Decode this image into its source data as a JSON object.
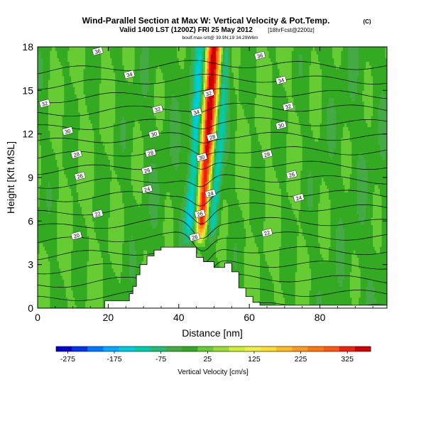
{
  "header": {
    "title": "Wind-Parallel Section at Max W: Vertical Velocity & Pot.Temp.",
    "title_mark": "(C)",
    "subtitle": "Valid 1400 LST (1200Z) FRI 25 May 2012",
    "subtitle_suffix": "[18hrFcst@2200z]",
    "source_line": "boulf.max-srlt@ 39.9N,19 34.29W6m"
  },
  "chart_data": {
    "type": "heatmap",
    "xlabel": "Distance [nm]",
    "ylabel": "Height [Kft MSL]",
    "xlim": [
      0,
      99
    ],
    "ylim": [
      0,
      18
    ],
    "x_ticks": [
      "0",
      "20",
      "40",
      "60",
      "80"
    ],
    "y_ticks": [
      "0",
      "3",
      "6",
      "9",
      "12",
      "15",
      "18"
    ],
    "colorbar": {
      "label": "Vertical Velocity [cm/s]",
      "min": -300,
      "max": 375,
      "ticks": [
        "-275",
        "-175",
        "-75",
        "25",
        "125",
        "225",
        "325"
      ],
      "colors": [
        "#0000cc",
        "#0033ee",
        "#0077ff",
        "#00aaff",
        "#00ccdd",
        "#00ccaa",
        "#22bb77",
        "#44aa44",
        "#33aa22",
        "#66cc33",
        "#99dd33",
        "#ccee33",
        "#eeee44",
        "#ffdd33",
        "#ffbb22",
        "#ff9922",
        "#ff7711",
        "#ff5511",
        "#ee2211",
        "#cc0000"
      ]
    },
    "updraft": {
      "base_x": 46,
      "top_x": 50,
      "core_w": 375,
      "note": "strong updraft column near 46-51 nm rising from ~4 to 18 Kft"
    },
    "terrain": [
      [
        0,
        0
      ],
      [
        19,
        0
      ],
      [
        19,
        0.5
      ],
      [
        26,
        0.5
      ],
      [
        26,
        1
      ],
      [
        27,
        1
      ],
      [
        27,
        1.5
      ],
      [
        28,
        1.5
      ],
      [
        28,
        2.3
      ],
      [
        29,
        2.3
      ],
      [
        29,
        3
      ],
      [
        31,
        3
      ],
      [
        31,
        3.6
      ],
      [
        33,
        3.6
      ],
      [
        33,
        4.0
      ],
      [
        35,
        4.0
      ],
      [
        35,
        4.2
      ],
      [
        45,
        4.2
      ],
      [
        45,
        3.5
      ],
      [
        47,
        3.5
      ],
      [
        47,
        3.2
      ],
      [
        50,
        3.2
      ],
      [
        50,
        2.8
      ],
      [
        53,
        2.8
      ],
      [
        53,
        3.1
      ],
      [
        55,
        3.1
      ],
      [
        55,
        2.5
      ],
      [
        57,
        2.5
      ],
      [
        57,
        1.4
      ],
      [
        59,
        1.4
      ],
      [
        59,
        0.8
      ],
      [
        61,
        0.8
      ],
      [
        61,
        0.4
      ],
      [
        63,
        0.4
      ],
      [
        63,
        0.2
      ],
      [
        99,
        0.2
      ]
    ],
    "isentropes": {
      "levels": [
        20,
        21,
        22,
        23,
        24,
        25,
        26,
        27,
        28,
        29,
        30,
        31,
        32,
        33,
        34,
        35,
        36,
        37
      ],
      "labels": [
        {
          "text": "20",
          "x": 11,
          "y": 5.0
        },
        {
          "text": "22",
          "x": 17,
          "y": 6.5
        },
        {
          "text": "24",
          "x": 31,
          "y": 8.2
        },
        {
          "text": "26",
          "x": 12,
          "y": 9.1
        },
        {
          "text": "26",
          "x": 31,
          "y": 9.5
        },
        {
          "text": "28",
          "x": 11,
          "y": 10.6
        },
        {
          "text": "28",
          "x": 32,
          "y": 10.7
        },
        {
          "text": "30",
          "x": 8.5,
          "y": 12.2
        },
        {
          "text": "30",
          "x": 33,
          "y": 12.0
        },
        {
          "text": "32",
          "x": 2,
          "y": 14.1
        },
        {
          "text": "32",
          "x": 34,
          "y": 13.7
        },
        {
          "text": "34",
          "x": 26,
          "y": 16.1
        },
        {
          "text": "36",
          "x": 17,
          "y": 17.7
        },
        {
          "text": "22",
          "x": 65,
          "y": 5.2
        },
        {
          "text": "24",
          "x": 74,
          "y": 7.6
        },
        {
          "text": "26",
          "x": 72,
          "y": 9.2
        },
        {
          "text": "28",
          "x": 65,
          "y": 10.6
        },
        {
          "text": "30",
          "x": 69,
          "y": 12.6
        },
        {
          "text": "32",
          "x": 71,
          "y": 13.9
        },
        {
          "text": "34",
          "x": 69,
          "y": 15.7
        },
        {
          "text": "36",
          "x": 63,
          "y": 17.4
        },
        {
          "text": "26",
          "x": 44.5,
          "y": 4.9
        },
        {
          "text": "26",
          "x": 46,
          "y": 6.5
        },
        {
          "text": "24",
          "x": 49,
          "y": 7.9
        },
        {
          "text": "30",
          "x": 46.5,
          "y": 10.4
        },
        {
          "text": "28",
          "x": 49.5,
          "y": 11.8
        },
        {
          "text": "34",
          "x": 45,
          "y": 13.5
        },
        {
          "text": "32",
          "x": 48.5,
          "y": 14.8
        }
      ]
    }
  }
}
